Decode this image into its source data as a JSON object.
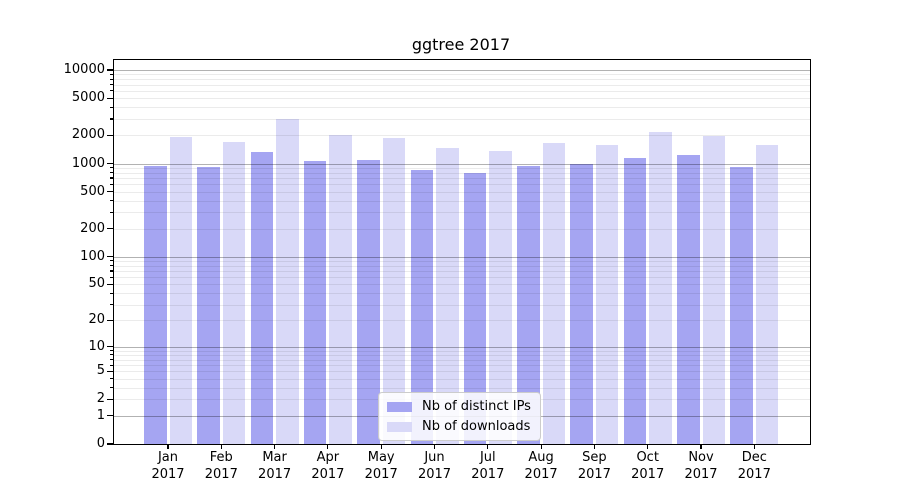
{
  "title": "ggtree 2017",
  "legend": {
    "items": [
      {
        "label": "Nb of distinct IPs"
      },
      {
        "label": "Nb of downloads"
      }
    ]
  },
  "chart_data": {
    "type": "bar",
    "title": "ggtree 2017",
    "x_months": [
      "Jan",
      "Feb",
      "Mar",
      "Apr",
      "May",
      "Jun",
      "Jul",
      "Aug",
      "Sep",
      "Oct",
      "Nov",
      "Dec"
    ],
    "x_year": "2017",
    "categories": [
      "Jan 2017",
      "Feb 2017",
      "Mar 2017",
      "Apr 2017",
      "May 2017",
      "Jun 2017",
      "Jul 2017",
      "Aug 2017",
      "Sep 2017",
      "Oct 2017",
      "Nov 2017",
      "Dec 2017"
    ],
    "series": [
      {
        "name": "Nb of distinct IPs",
        "color": "#a5a5f2",
        "values": [
          950,
          910,
          1330,
          1060,
          1080,
          845,
          790,
          935,
          990,
          1150,
          1230,
          920
        ]
      },
      {
        "name": "Nb of downloads",
        "color": "#d9d9f8",
        "values": [
          1900,
          1720,
          2960,
          2000,
          1880,
          1450,
          1350,
          1640,
          1580,
          2150,
          1980,
          1560
        ]
      }
    ],
    "yscale": "log1p",
    "y_ticks": [
      0,
      1,
      2,
      5,
      10,
      20,
      50,
      100,
      200,
      500,
      1000,
      2000,
      5000,
      10000
    ],
    "ylim": [
      0,
      12500
    ],
    "grid": true,
    "legend_position": "lower center",
    "axis_color": "#000000",
    "major_grid_color": "#b3b3b3",
    "minor_grid_color": "#ebebeb"
  }
}
